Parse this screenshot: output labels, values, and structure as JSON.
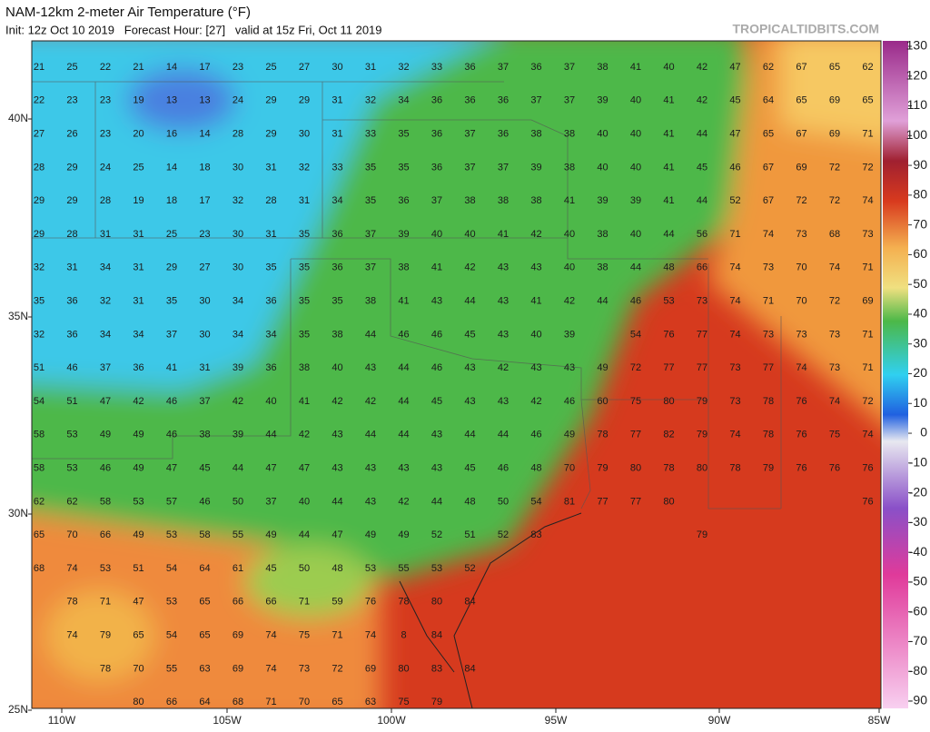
{
  "header": {
    "title": "NAM-12km 2-meter Air Temperature (°F)",
    "subtitle": "Init: 12z Oct 10 2019   Forecast Hour: [27]   valid at 15z Fri, Oct 11 2019",
    "source": "TROPICALTIDBITS.COM"
  },
  "colorbar": {
    "ticks": [
      130,
      120,
      110,
      100,
      90,
      80,
      70,
      60,
      50,
      40,
      30,
      20,
      10,
      0,
      -10,
      -20,
      -30,
      -40,
      -50,
      -60,
      -70,
      -80,
      -90
    ]
  },
  "latitude_labels": [
    "40N",
    "35N",
    "30N",
    "25N"
  ],
  "longitude_labels": [
    "110W",
    "105W",
    "100W",
    "95W",
    "90W",
    "85W"
  ],
  "grid": {
    "rows": [
      [
        21,
        25,
        22,
        21,
        14,
        17,
        23,
        25,
        27,
        30,
        31,
        32,
        33,
        36,
        37,
        36,
        37,
        38,
        41,
        40,
        42,
        47,
        62,
        67,
        65,
        62
      ],
      [
        22,
        23,
        23,
        19,
        13,
        13,
        24,
        29,
        29,
        31,
        32,
        34,
        36,
        36,
        36,
        37,
        37,
        39,
        40,
        41,
        42,
        45,
        64,
        65,
        69,
        65
      ],
      [
        27,
        26,
        23,
        20,
        16,
        14,
        28,
        29,
        30,
        31,
        33,
        35,
        36,
        37,
        36,
        38,
        38,
        40,
        40,
        41,
        44,
        47,
        65,
        67,
        69,
        71
      ],
      [
        28,
        29,
        24,
        25,
        14,
        18,
        30,
        31,
        32,
        33,
        35,
        35,
        36,
        37,
        37,
        39,
        38,
        40,
        40,
        41,
        45,
        46,
        67,
        69,
        72,
        72
      ],
      [
        29,
        29,
        28,
        19,
        18,
        17,
        32,
        28,
        31,
        34,
        35,
        36,
        37,
        38,
        38,
        38,
        41,
        39,
        39,
        41,
        44,
        52,
        67,
        72,
        72,
        74
      ],
      [
        29,
        28,
        31,
        31,
        25,
        23,
        30,
        31,
        35,
        36,
        37,
        39,
        40,
        40,
        41,
        42,
        40,
        38,
        40,
        44,
        56,
        71,
        74,
        73,
        68,
        73
      ],
      [
        32,
        31,
        34,
        31,
        29,
        27,
        30,
        35,
        35,
        36,
        37,
        38,
        41,
        42,
        43,
        43,
        40,
        38,
        44,
        48,
        66,
        74,
        73,
        70,
        74,
        71
      ],
      [
        35,
        36,
        32,
        31,
        35,
        30,
        34,
        36,
        35,
        35,
        38,
        41,
        43,
        44,
        43,
        41,
        42,
        44,
        46,
        53,
        73,
        74,
        71,
        70,
        72,
        69
      ],
      [
        32,
        36,
        34,
        34,
        37,
        30,
        34,
        34,
        35,
        38,
        44,
        46,
        46,
        45,
        43,
        40,
        39,
        null,
        54,
        76,
        77,
        74,
        73,
        73,
        73,
        71
      ],
      [
        51,
        46,
        37,
        36,
        41,
        31,
        39,
        36,
        38,
        40,
        43,
        44,
        46,
        43,
        42,
        43,
        43,
        49,
        72,
        77,
        77,
        73,
        77,
        74,
        73,
        71
      ],
      [
        54,
        51,
        47,
        42,
        46,
        37,
        42,
        40,
        41,
        42,
        42,
        44,
        45,
        43,
        43,
        42,
        46,
        60,
        75,
        80,
        79,
        73,
        78,
        76,
        74,
        72
      ],
      [
        58,
        53,
        49,
        49,
        46,
        38,
        39,
        44,
        42,
        43,
        44,
        44,
        43,
        44,
        44,
        46,
        49,
        78,
        77,
        82,
        79,
        74,
        78,
        76,
        75,
        74
      ],
      [
        58,
        53,
        46,
        49,
        47,
        45,
        44,
        47,
        47,
        43,
        43,
        43,
        43,
        45,
        46,
        48,
        70,
        79,
        80,
        78,
        80,
        78,
        79,
        76,
        76,
        76
      ],
      [
        62,
        62,
        58,
        53,
        57,
        46,
        50,
        37,
        40,
        44,
        43,
        42,
        44,
        48,
        50,
        54,
        81,
        77,
        77,
        80,
        null,
        null,
        null,
        null,
        null,
        76
      ],
      [
        65,
        70,
        66,
        49,
        53,
        58,
        55,
        49,
        44,
        47,
        49,
        49,
        52,
        51,
        52,
        83,
        null,
        null,
        null,
        null,
        79,
        null,
        null,
        null,
        null,
        null
      ],
      [
        68,
        74,
        53,
        51,
        54,
        64,
        61,
        45,
        50,
        48,
        53,
        55,
        53,
        52,
        null,
        null,
        null,
        null,
        null,
        null,
        null,
        null,
        null,
        null,
        null,
        null
      ],
      [
        null,
        78,
        71,
        47,
        53,
        65,
        66,
        66,
        71,
        59,
        76,
        78,
        80,
        84,
        null,
        null,
        null,
        null,
        null,
        null,
        null,
        null,
        null,
        null,
        null,
        null
      ],
      [
        null,
        74,
        79,
        65,
        54,
        65,
        69,
        74,
        75,
        71,
        74,
        8,
        84,
        null,
        null,
        null,
        null,
        null,
        null,
        null,
        null,
        null,
        null,
        null,
        null,
        null
      ],
      [
        null,
        null,
        78,
        70,
        55,
        63,
        69,
        74,
        73,
        72,
        69,
        80,
        83,
        84,
        null,
        null,
        null,
        null,
        null,
        null,
        null,
        null,
        null,
        null,
        null,
        null
      ],
      [
        null,
        null,
        null,
        80,
        66,
        64,
        68,
        71,
        70,
        65,
        63,
        75,
        79,
        null,
        null,
        null,
        null,
        null,
        null,
        null,
        null,
        null,
        null,
        null,
        null,
        null
      ]
    ]
  }
}
